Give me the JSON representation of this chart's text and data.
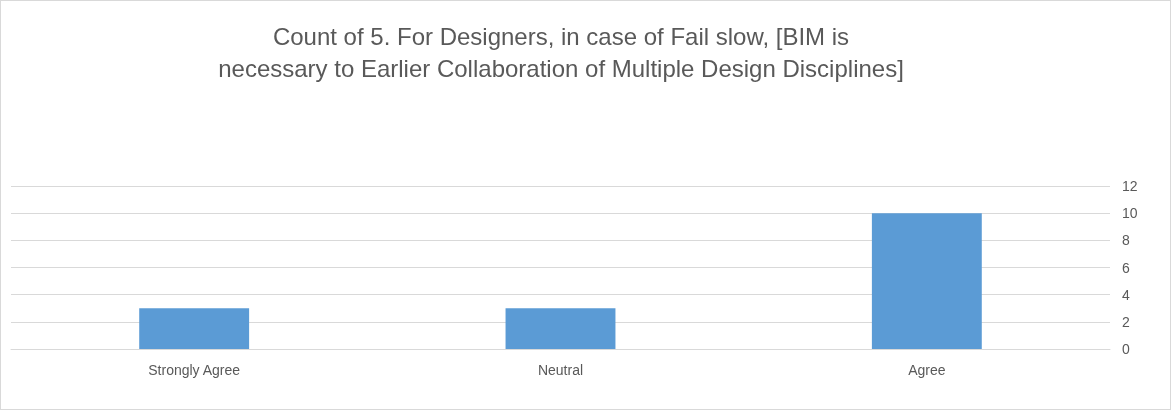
{
  "chart_data": {
    "type": "bar",
    "title": "Count of 5. For Designers, in case of Fail slow, [BIM is\nnecessary to Earlier Collaboration of Multiple Design Disciplines]",
    "categories": [
      "Strongly Agree",
      "Neutral",
      "Agree"
    ],
    "values": [
      3,
      3,
      10
    ],
    "color": "#5b9bd5",
    "ylim": [
      0,
      12
    ],
    "yticks": [
      0,
      2,
      4,
      6,
      8,
      10,
      12
    ],
    "grid": "y"
  }
}
